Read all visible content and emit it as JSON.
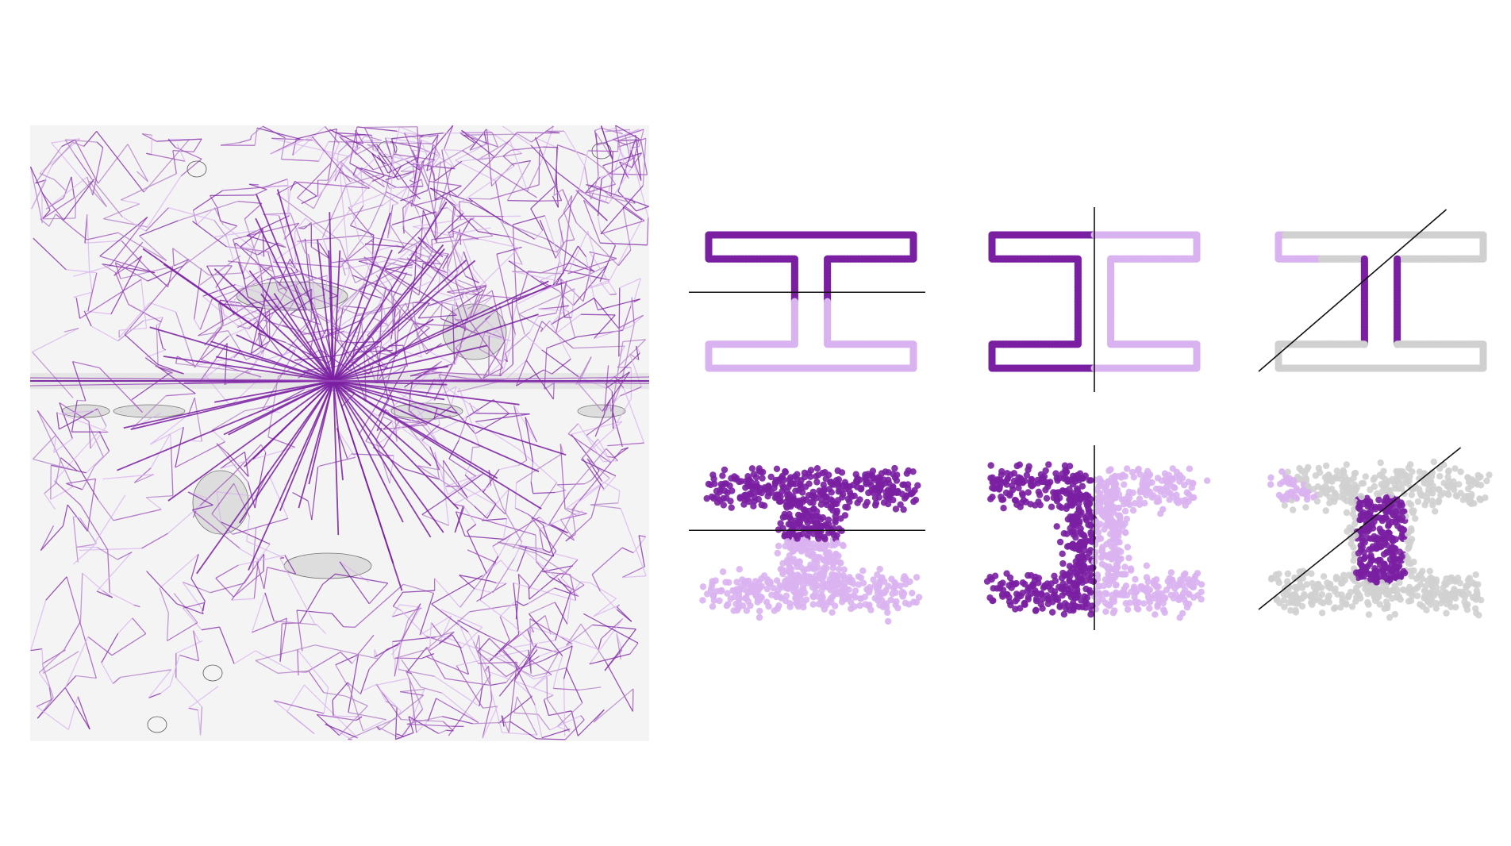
{
  "figure": {
    "description_free": true,
    "colors": {
      "background": "#ffffff",
      "panel_bg": "#f4f4f4",
      "dark_purple": "#7a1fa2",
      "mid_purple": "#9b4ab8",
      "light_purple": "#d9b3ef",
      "grey": "#d0d0d0",
      "cut_line": "#111111",
      "contour_fill": "#d8d8d8",
      "contour_line": "#555555",
      "teal_hint": "#4a9a8a"
    },
    "trajectory_panel": {
      "star_rays": 64,
      "random_segments": 1800
    },
    "shape_panels": [
      {
        "name": "horizontal-cut-clean",
        "cut": "horizontal",
        "style": "clean",
        "coloring": "top-dark"
      },
      {
        "name": "vertical-cut-clean",
        "cut": "vertical",
        "style": "clean",
        "coloring": "left-dark"
      },
      {
        "name": "diagonal-cut-clean",
        "cut": "diagonal",
        "style": "clean",
        "coloring": "stem-dark"
      },
      {
        "name": "horizontal-cut-noisy",
        "cut": "horizontal",
        "style": "noisy",
        "coloring": "top-dark"
      },
      {
        "name": "vertical-cut-noisy",
        "cut": "vertical",
        "style": "noisy",
        "coloring": "left-dark"
      },
      {
        "name": "diagonal-cut-noisy",
        "cut": "diagonal",
        "style": "noisy",
        "coloring": "stem-dark"
      }
    ]
  }
}
